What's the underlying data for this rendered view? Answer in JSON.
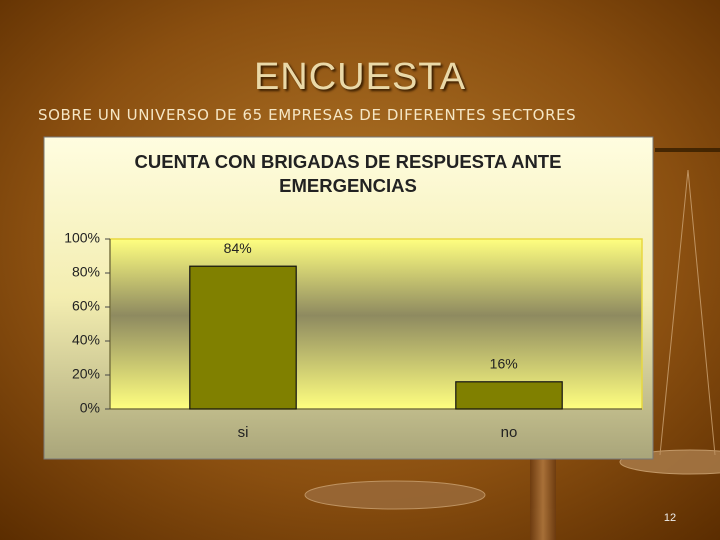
{
  "slide": {
    "title": "ENCUESTA",
    "subtitle": "SOBRE UN UNIVERSO DE 65 EMPRESAS DE DIFERENTES SECTORES",
    "page_number": "12"
  },
  "chart_data": {
    "type": "bar",
    "title": "CUENTA CON BRIGADAS DE RESPUESTA ANTE EMERGENCIAS",
    "categories": [
      "si",
      "no"
    ],
    "values": [
      84,
      16
    ],
    "value_labels": [
      "84%",
      "16%"
    ],
    "color": "#808000",
    "ylim": [
      0,
      100
    ],
    "yticks": [
      {
        "value": 0,
        "label": "0%"
      },
      {
        "value": 20,
        "label": "20%"
      },
      {
        "value": 40,
        "label": "40%"
      },
      {
        "value": 60,
        "label": "60%"
      },
      {
        "value": 80,
        "label": "80%"
      },
      {
        "value": 100,
        "label": "100%"
      }
    ],
    "grid": false
  }
}
